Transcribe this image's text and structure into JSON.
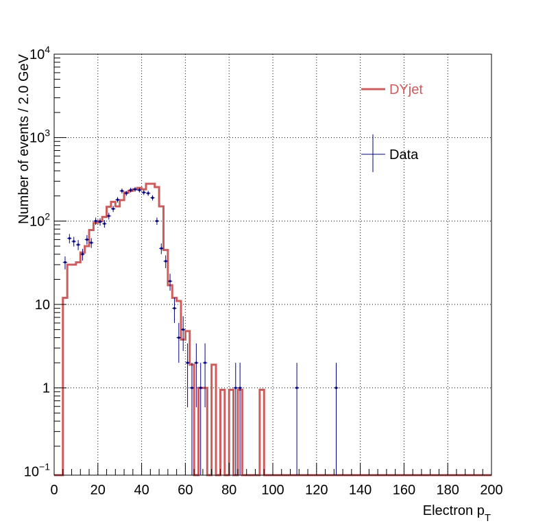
{
  "chart_data": {
    "type": "histogram",
    "ylabel": "Number of events / 2.0 GeV",
    "xlabel": {
      "main": "Electron p",
      "subscript": "T"
    },
    "xlim": [
      0,
      200
    ],
    "ylim": [
      0.09,
      10000
    ],
    "yscale": "log",
    "grid": true,
    "bin_width": 2,
    "x_ticks": [
      "0",
      "20",
      "40",
      "60",
      "80",
      "100",
      "120",
      "140",
      "160",
      "180",
      "200"
    ],
    "y_ticks": [
      {
        "base": "10",
        "exp": "−1"
      },
      {
        "base": "1",
        "exp": ""
      },
      {
        "base": "10",
        "exp": ""
      },
      {
        "base": "10",
        "exp": "2"
      },
      {
        "base": "10",
        "exp": "3"
      },
      {
        "base": "10",
        "exp": "4"
      }
    ],
    "legend": [
      {
        "label": "DYjet",
        "color": "#cd5c5c",
        "style": "line"
      },
      {
        "label": "Data",
        "color": "#00007f",
        "style": "errorbar"
      }
    ],
    "legend_position": "top-right",
    "series": [
      {
        "name": "DYjet",
        "style": "step",
        "color": "#cd5c5c",
        "values": [
          0.09,
          0.09,
          12,
          30,
          30,
          32,
          42,
          50,
          78,
          95,
          100,
          112,
          148,
          170,
          150,
          178,
          220,
          230,
          240,
          250,
          240,
          280,
          280,
          255,
          150,
          45,
          17,
          12,
          11,
          3.8,
          4.8,
          1.9,
          0.09,
          1,
          1,
          0.09,
          1.9,
          0.09,
          0.95,
          0.09,
          0.95,
          0.09,
          0.95,
          0.09,
          0.09,
          0.09,
          0.09,
          0.95,
          0.09,
          0.09,
          0.09,
          0.09,
          0.09,
          0.09,
          0.09,
          0.09,
          0.09,
          0.09,
          0.09,
          0.09,
          0.09,
          0.09,
          0.09,
          0.09,
          0.09,
          0.09,
          0.09,
          0.09,
          0.09,
          0.09,
          0.09,
          0.09,
          0.09,
          0.09,
          0.09,
          0.09,
          0.09,
          0.09,
          0.09,
          0.09,
          0.09,
          0.09,
          0.09,
          0.09,
          0.09,
          0.09,
          0.09,
          0.09,
          0.09,
          0.09,
          0.09,
          0.09,
          0.09,
          0.09,
          0.09,
          0.09,
          0.09,
          0.09,
          0.09,
          0.09
        ]
      },
      {
        "name": "Data",
        "style": "errorbar",
        "color": "#00007f",
        "points": [
          {
            "x": 5,
            "y": 32
          },
          {
            "x": 7,
            "y": 62
          },
          {
            "x": 9,
            "y": 57
          },
          {
            "x": 11,
            "y": 52
          },
          {
            "x": 13,
            "y": 40
          },
          {
            "x": 15,
            "y": 60
          },
          {
            "x": 17,
            "y": 55
          },
          {
            "x": 19,
            "y": 100
          },
          {
            "x": 21,
            "y": 98
          },
          {
            "x": 23,
            "y": 93
          },
          {
            "x": 25,
            "y": 115
          },
          {
            "x": 27,
            "y": 140
          },
          {
            "x": 29,
            "y": 180
          },
          {
            "x": 31,
            "y": 230
          },
          {
            "x": 33,
            "y": 215
          },
          {
            "x": 35,
            "y": 235
          },
          {
            "x": 37,
            "y": 240
          },
          {
            "x": 39,
            "y": 235
          },
          {
            "x": 41,
            "y": 220
          },
          {
            "x": 43,
            "y": 215
          },
          {
            "x": 45,
            "y": 190
          },
          {
            "x": 47,
            "y": 100
          },
          {
            "x": 49,
            "y": 47
          },
          {
            "x": 51,
            "y": 33
          },
          {
            "x": 53,
            "y": 19
          },
          {
            "x": 55,
            "y": 9
          },
          {
            "x": 57,
            "y": 4
          },
          {
            "x": 59,
            "y": 5
          },
          {
            "x": 61,
            "y": 2
          },
          {
            "x": 63,
            "y": 1
          },
          {
            "x": 65,
            "y": 2
          },
          {
            "x": 67,
            "y": 1
          },
          {
            "x": 69,
            "y": 2
          },
          {
            "x": 83,
            "y": 1
          },
          {
            "x": 85,
            "y": 1
          },
          {
            "x": 111,
            "y": 1
          },
          {
            "x": 129,
            "y": 1
          }
        ]
      }
    ]
  }
}
